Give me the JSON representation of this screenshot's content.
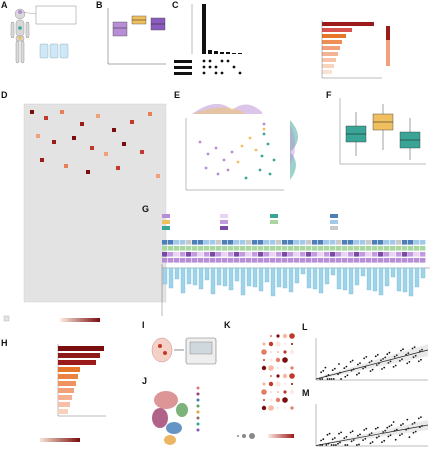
{
  "figure": {
    "panel_labels": [
      "A",
      "B",
      "C",
      "D",
      "E",
      "F",
      "G",
      "H",
      "I",
      "J",
      "K",
      "L",
      "M"
    ],
    "colors": {
      "skull": "#b78dd6",
      "pelvis": "#f0c060",
      "vertebra": "#3aa597",
      "bar_red": "#9b1b1b",
      "bar_orange": "#e6762a",
      "bar_light": "#f2a07a",
      "heatmap_grey": "#e3e3e3",
      "bar_blue": "#9fd3ea"
    }
  },
  "panel_a": {
    "text": ""
  },
  "panel_b": {
    "text": ""
  },
  "panel_c": {
    "text": ""
  },
  "panel_d": {
    "text": ""
  },
  "panel_e": {
    "text": ""
  },
  "panel_f": {
    "text": ""
  },
  "panel_g": {
    "text": ""
  },
  "panel_h": {
    "text": ""
  },
  "panel_i": {
    "text": ""
  },
  "panel_j": {
    "text": ""
  },
  "panel_k": {
    "text": ""
  },
  "panel_l": {
    "text": ""
  },
  "panel_m": {
    "text": ""
  }
}
